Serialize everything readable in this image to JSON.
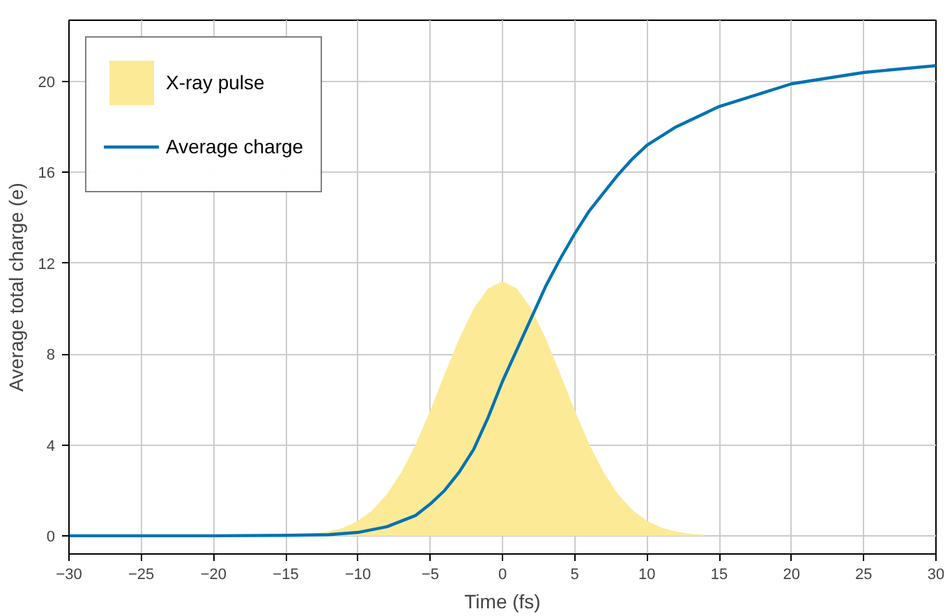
{
  "chart_data": {
    "type": "line",
    "xlabel": "Time (fs)",
    "ylabel": "Average total charge (e)",
    "xlim": [
      -30,
      30
    ],
    "xticks": [
      -30,
      -25,
      -20,
      -15,
      -10,
      -5,
      0,
      5,
      10,
      15,
      20,
      25,
      30
    ],
    "ylim": [
      -0.8,
      22.7
    ],
    "yticks": [
      0,
      4,
      8,
      12,
      16,
      20
    ],
    "grid": true,
    "legend": "top left",
    "series": [
      {
        "name": "X-ray pulse",
        "type": "area",
        "color": "#fdea96",
        "x": [
          -14,
          -13,
          -12,
          -11,
          -10,
          -9,
          -8,
          -7,
          -6,
          -5,
          -4,
          -3,
          -2,
          -1,
          0,
          1,
          2,
          3,
          4,
          5,
          6,
          7,
          8,
          9,
          10,
          11,
          12,
          13,
          14
        ],
        "values": [
          0.04,
          0.09,
          0.19,
          0.36,
          0.66,
          1.13,
          1.83,
          2.8,
          4.04,
          5.52,
          7.12,
          8.68,
          10.0,
          10.89,
          11.2,
          10.89,
          10.0,
          8.68,
          7.12,
          5.52,
          4.04,
          2.8,
          1.83,
          1.13,
          0.66,
          0.36,
          0.19,
          0.09,
          0.04
        ]
      },
      {
        "name": "Average charge",
        "color": "#0072b2",
        "x": [
          -30,
          -20,
          -15,
          -12,
          -10,
          -8,
          -6,
          -5,
          -4,
          -3,
          -2,
          -1,
          0,
          1,
          2,
          3,
          4,
          5,
          6,
          7,
          8,
          9,
          10,
          12,
          15,
          18,
          20,
          25,
          30
        ],
        "values": [
          0,
          0,
          0.02,
          0.05,
          0.15,
          0.4,
          0.9,
          1.4,
          2.0,
          2.8,
          3.8,
          5.2,
          6.8,
          8.2,
          9.6,
          11.0,
          12.2,
          13.3,
          14.3,
          15.1,
          15.9,
          16.6,
          17.2,
          18.0,
          18.9,
          19.5,
          19.9,
          20.4,
          20.7
        ]
      }
    ]
  }
}
